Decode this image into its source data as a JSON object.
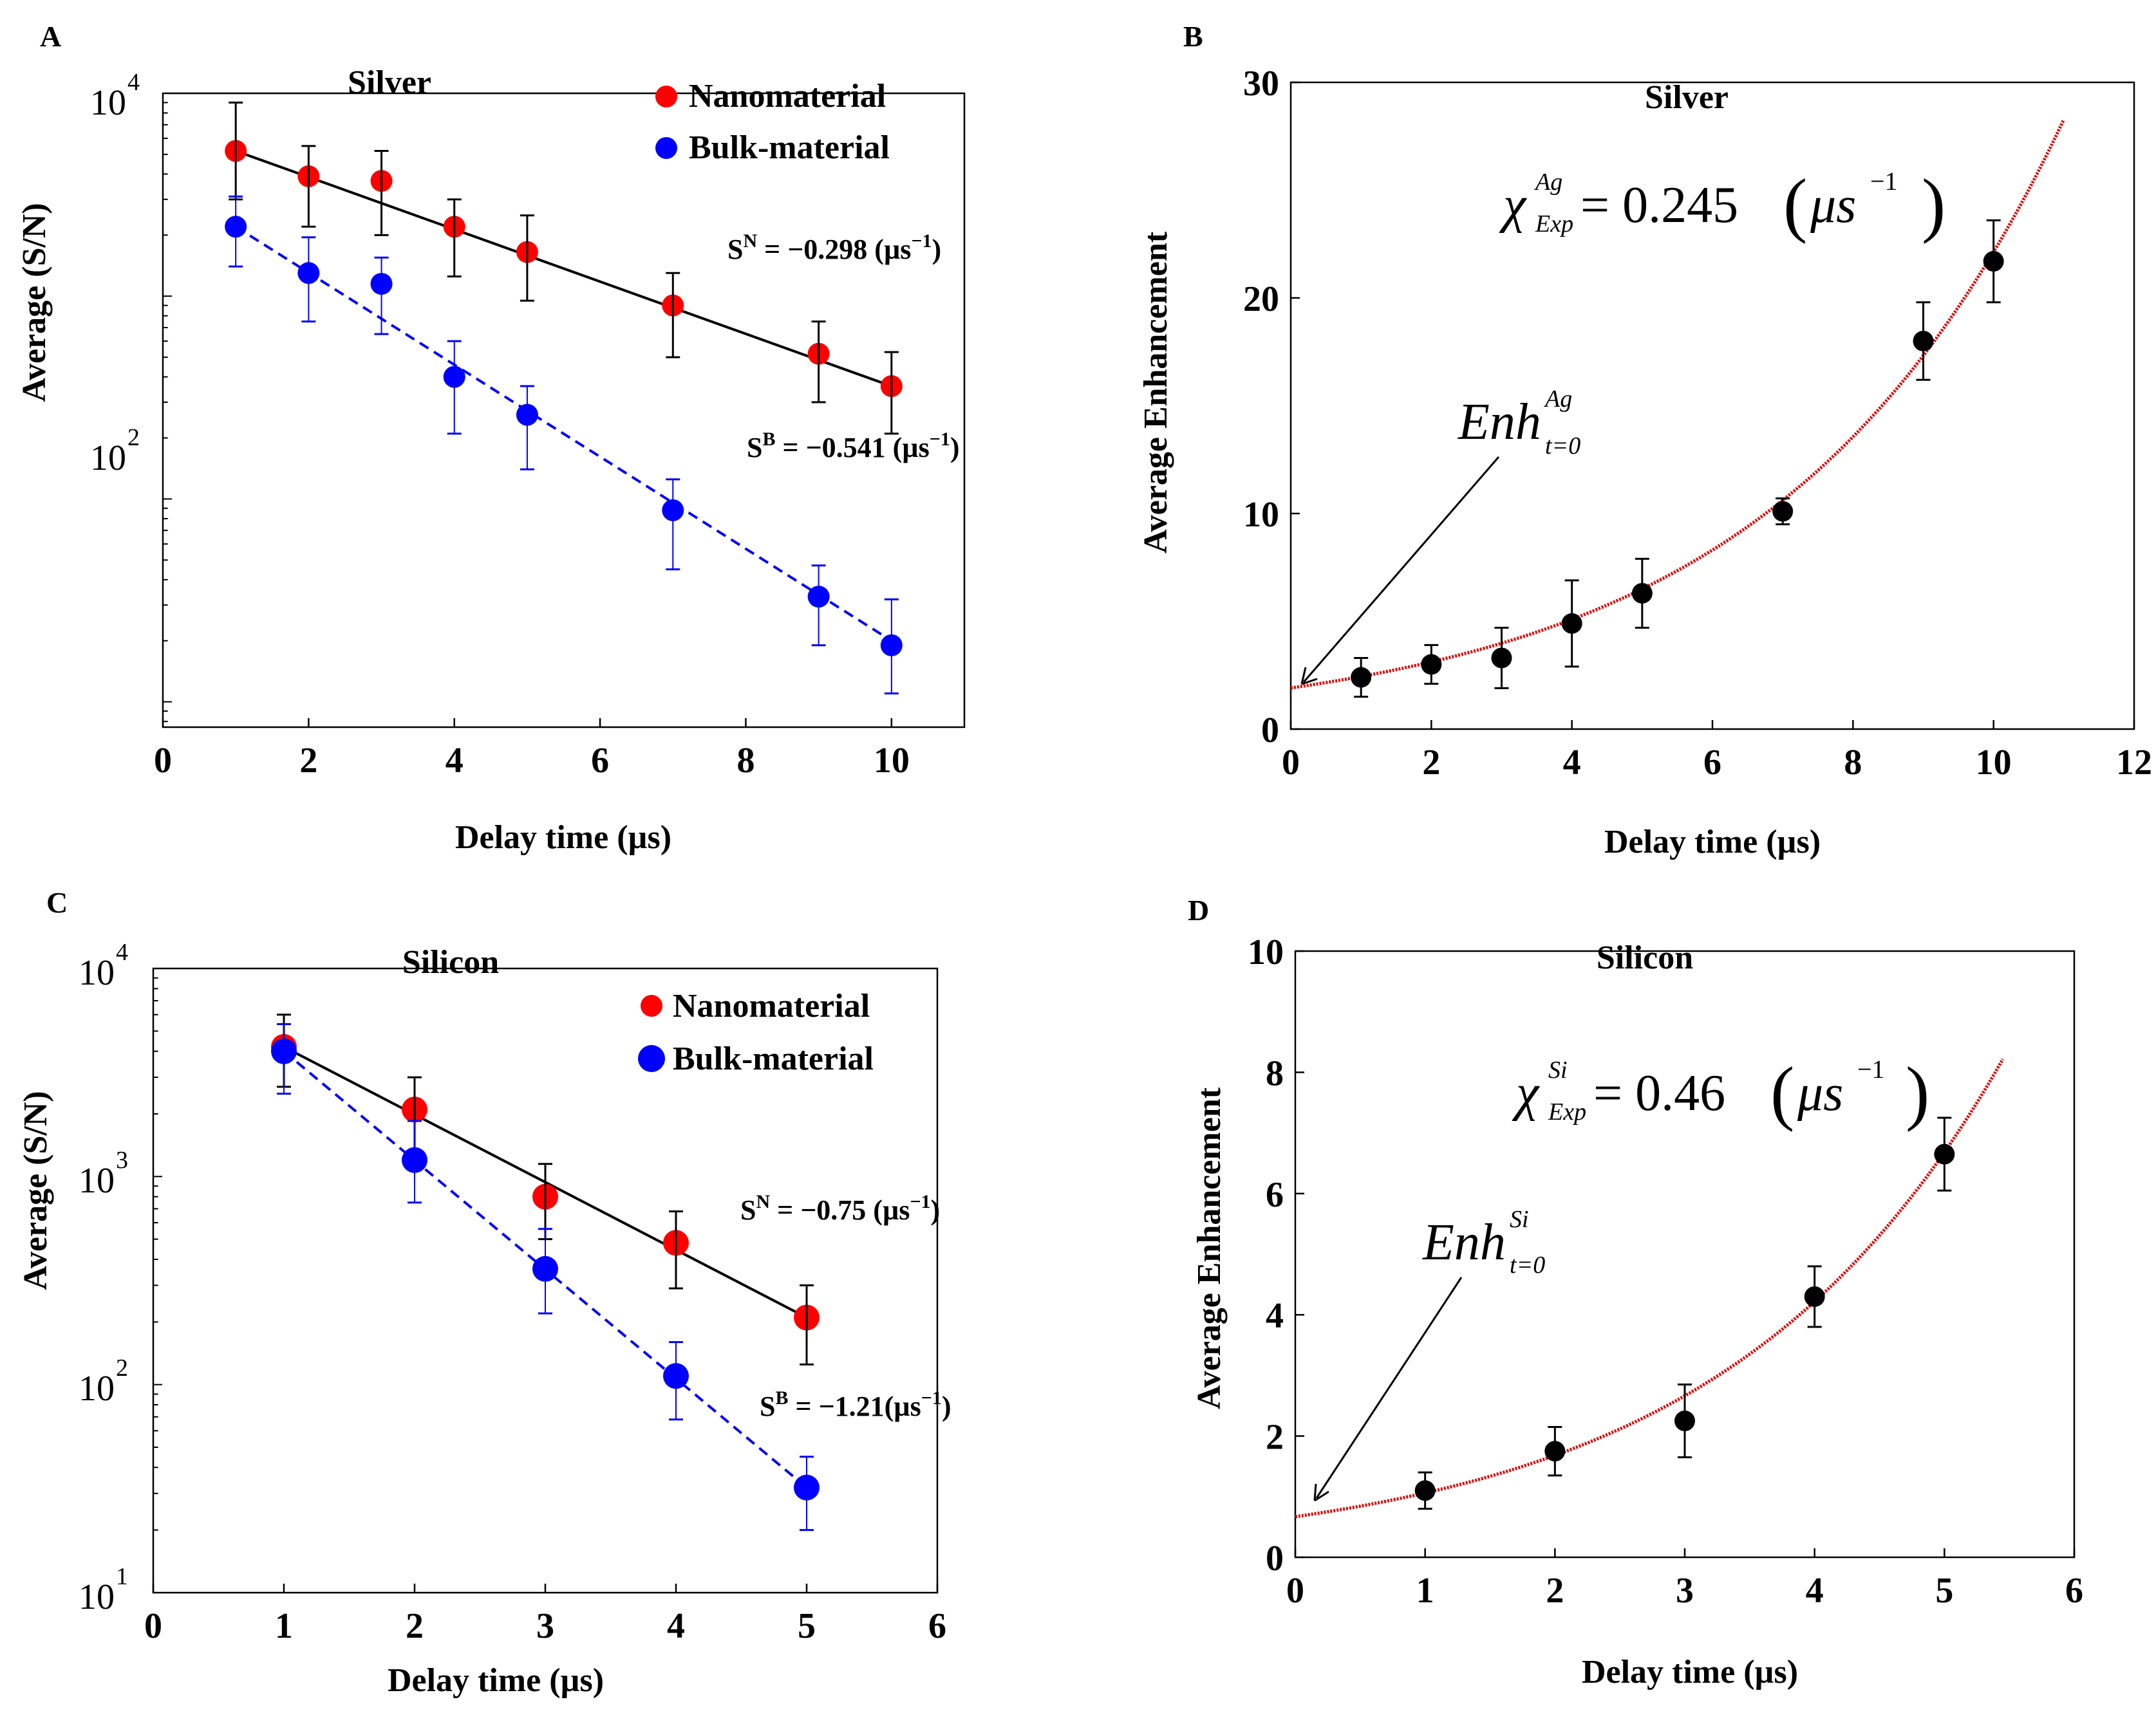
{
  "figure": {
    "colors": {
      "nano": "#ff0000",
      "bulk": "#0000ff",
      "black": "#000000",
      "fit_red": "#e60000"
    }
  },
  "chart_data": [
    {
      "panel": "A",
      "type": "scatter",
      "title": "Silver",
      "xlabel": "Delay time (µs)",
      "ylabel": "Average (S/N)",
      "yscale": "log",
      "xlim": [
        0,
        11
      ],
      "ylim": [
        7.5,
        10000
      ],
      "xticks": [
        "0",
        "2",
        "4",
        "6",
        "8",
        "10"
      ],
      "xtick_values": [
        0,
        2,
        4,
        6,
        8,
        10
      ],
      "yticks": [
        {
          "base": "10",
          "exp": "4",
          "value": 10000
        },
        {
          "base": "10",
          "exp": "2",
          "value": 100
        }
      ],
      "legend": [
        {
          "label": "Nanomaterial",
          "series": "nano"
        },
        {
          "label": "Bulk-material",
          "series": "bulk"
        }
      ],
      "series": [
        {
          "name": "Nanomaterial",
          "key": "nano",
          "x": [
            1,
            2,
            3,
            4,
            5,
            7,
            9,
            10
          ],
          "y": [
            5200,
            3900,
            3700,
            2200,
            1650,
            900,
            520,
            360
          ],
          "err": [
            [
              3000,
              9000
            ],
            [
              2200,
              5500
            ],
            [
              2000,
              5200
            ],
            [
              1250,
              3000
            ],
            [
              950,
              2500
            ],
            [
              500,
              1300
            ],
            [
              300,
              750
            ],
            [
              210,
              530
            ]
          ],
          "fit": {
            "line": "solid",
            "color": "black",
            "x": [
              1,
              10
            ],
            "y": [
              5200,
              360
            ]
          }
        },
        {
          "name": "Bulk-material",
          "key": "bulk",
          "x": [
            1,
            2,
            3,
            4,
            5,
            7,
            9,
            10
          ],
          "y": [
            2200,
            1300,
            1150,
            400,
            260,
            88,
            33,
            19
          ],
          "err": [
            [
              1400,
              3100
            ],
            [
              750,
              1950
            ],
            [
              650,
              1550
            ],
            [
              210,
              600
            ],
            [
              140,
              360
            ],
            [
              45,
              125
            ],
            [
              19,
              47
            ],
            [
              11,
              32
            ]
          ],
          "fit": {
            "line": "dashed",
            "color": "blue",
            "x": [
              1,
              10
            ],
            "y": [
              2200,
              20
            ]
          }
        }
      ],
      "annotations": [
        {
          "base": "S",
          "sup": "N",
          "text": " = −0.298 (µs",
          "unit_exp": "−1",
          "close": ")"
        },
        {
          "base": "S",
          "sup": "B",
          "text": " = −0.541 (µs",
          "unit_exp": "−1",
          "close": ")"
        }
      ]
    },
    {
      "panel": "B",
      "type": "scatter",
      "title": "Silver",
      "xlabel": "Delay time (µs)",
      "ylabel": "Average Enhancement",
      "xlim": [
        0,
        12
      ],
      "ylim": [
        0,
        30
      ],
      "xticks": [
        "0",
        "2",
        "4",
        "6",
        "8",
        "10",
        "12"
      ],
      "xtick_values": [
        0,
        2,
        4,
        6,
        8,
        10,
        12
      ],
      "yticks": [
        "0",
        "10",
        "20",
        "30"
      ],
      "ytick_values": [
        0,
        10,
        20,
        30
      ],
      "series": [
        {
          "name": "Enhancement",
          "x": [
            1,
            2,
            3,
            4,
            5,
            7,
            9,
            10
          ],
          "y": [
            2.4,
            3.0,
            3.3,
            4.9,
            6.3,
            10.1,
            18.0,
            21.7
          ],
          "err": [
            0.9,
            0.9,
            1.4,
            2.0,
            1.6,
            0.6,
            1.8,
            1.9
          ]
        }
      ],
      "fit": {
        "type": "exponential",
        "a": 1.91,
        "b": 0.245,
        "xmax": 11
      },
      "formula": {
        "chi": "χ",
        "chi_sup": "Ag",
        "chi_sub": "Exp",
        "eq": " = 0.245",
        "unit": "μs",
        "unit_exp": "−1"
      },
      "enh_label": {
        "text": "Enh",
        "sup": "Ag",
        "sub": "t=0"
      }
    },
    {
      "panel": "C",
      "type": "scatter",
      "title": "Silicon",
      "xlabel": "Delay time (µs)",
      "ylabel": "Average (S/N)",
      "yscale": "log",
      "xlim": [
        0,
        6
      ],
      "ylim": [
        10,
        10000
      ],
      "xticks": [
        "0",
        "1",
        "2",
        "3",
        "4",
        "5",
        "6"
      ],
      "xtick_values": [
        0,
        1,
        2,
        3,
        4,
        5,
        6
      ],
      "yticks": [
        {
          "base": "10",
          "exp": "4",
          "value": 10000
        },
        {
          "base": "10",
          "exp": "3",
          "value": 1000
        },
        {
          "base": "10",
          "exp": "2",
          "value": 100
        },
        {
          "base": "10",
          "exp": "1",
          "value": 10
        }
      ],
      "legend": [
        {
          "label": "Nanomaterial",
          "series": "nano"
        },
        {
          "label": "Bulk-material",
          "series": "bulk"
        }
      ],
      "series": [
        {
          "name": "Nanomaterial",
          "key": "nano",
          "x": [
            1,
            2,
            3,
            4,
            5
          ],
          "y": [
            4200,
            2100,
            800,
            480,
            210
          ],
          "err": [
            [
              2700,
              6000
            ],
            [
              1300,
              3000
            ],
            [
              500,
              1150
            ],
            [
              290,
              680
            ],
            [
              125,
              300
            ]
          ],
          "fit": {
            "line": "solid",
            "color": "black",
            "x": [
              1,
              5
            ],
            "y": [
              4200,
              210
            ]
          }
        },
        {
          "name": "Bulk-material",
          "key": "bulk",
          "x": [
            1,
            2,
            3,
            4,
            5
          ],
          "y": [
            4000,
            1200,
            360,
            110,
            32
          ],
          "err": [
            [
              2500,
              5400
            ],
            [
              750,
              1850
            ],
            [
              220,
              560
            ],
            [
              68,
              160
            ],
            [
              20,
              45
            ]
          ],
          "fit": {
            "line": "dashed",
            "color": "blue",
            "x": [
              1,
              5
            ],
            "y": [
              4000,
              32
            ]
          }
        }
      ],
      "annotations": [
        {
          "base": "S",
          "sup": "N",
          "text": " = −0.75 (µs",
          "unit_exp": "−1",
          "close": ")"
        },
        {
          "base": "S",
          "sup": "B",
          "text": " = −1.21(µs",
          "unit_exp": "−1",
          "close": ")"
        }
      ]
    },
    {
      "panel": "D",
      "type": "scatter",
      "title": "Silicon",
      "xlabel": "Delay time (µs)",
      "ylabel": "Average Enhancement",
      "xlim": [
        0,
        6
      ],
      "ylim": [
        0,
        10
      ],
      "xticks": [
        "0",
        "1",
        "2",
        "3",
        "4",
        "5",
        "6"
      ],
      "xtick_values": [
        0,
        1,
        2,
        3,
        4,
        5,
        6
      ],
      "yticks": [
        "0",
        "2",
        "4",
        "6",
        "8",
        "10"
      ],
      "ytick_values": [
        0,
        2,
        4,
        6,
        8,
        10
      ],
      "series": [
        {
          "name": "Enhancement",
          "x": [
            1,
            2,
            3,
            4,
            5
          ],
          "y": [
            1.1,
            1.75,
            2.25,
            4.3,
            6.65
          ],
          "err": [
            0.3,
            0.4,
            0.6,
            0.5,
            0.6
          ]
        }
      ],
      "fit": {
        "type": "exponential",
        "a": 0.67,
        "b": 0.46,
        "xmax": 5.45
      },
      "formula": {
        "chi": "χ",
        "chi_sup": "Si",
        "chi_sub": "Exp",
        "eq": " = 0.46",
        "unit": "μs",
        "unit_exp": "−1"
      },
      "enh_label": {
        "text": "Enh",
        "sup": "Si",
        "sub": "t=0"
      }
    }
  ]
}
